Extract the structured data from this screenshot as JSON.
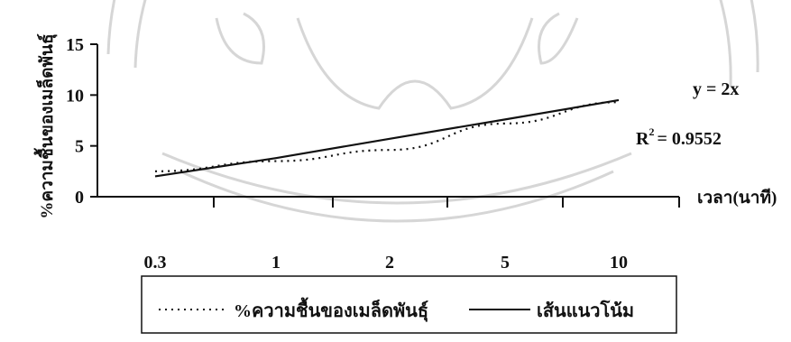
{
  "chart_data": {
    "type": "line",
    "categories": [
      "0.3",
      "1",
      "2",
      "5",
      "10"
    ],
    "series": [
      {
        "name": "%ความชื้นของเมล็ดพันธุ์",
        "style": "dotted",
        "values": [
          2.5,
          3.5,
          4.6,
          7.2,
          9.3
        ]
      },
      {
        "name": "เส้นแนวโน้ม",
        "style": "solid",
        "values": [
          2.0,
          3.8,
          5.7,
          7.6,
          9.5
        ]
      }
    ],
    "ylabel": "%ความชื้นของเมล็ดพันธุ์",
    "xlabel": "เวลา(นาที)",
    "ylim": [
      0,
      15
    ],
    "yticks": [
      "0",
      "5",
      "10",
      "15"
    ],
    "equation": "y = 2x",
    "r2_label": "R",
    "r2_sup": "2",
    "r2_value": "= 0.9552",
    "grid": false,
    "legend_position": "bottom",
    "colors": {
      "line": "#111111",
      "watermark": "#cfcfcf"
    }
  }
}
